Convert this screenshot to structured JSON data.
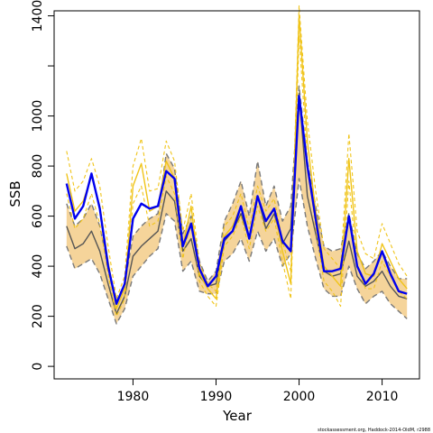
{
  "chart_data": {
    "type": "line",
    "xlabel": "Year",
    "ylabel": "SSB",
    "xlim": [
      1970.5,
      2014.5
    ],
    "ylim": [
      -50,
      1420
    ],
    "x_ticks": [
      1980,
      1990,
      2000,
      2010
    ],
    "y_ticks": [
      0,
      200,
      400,
      600,
      800,
      1000,
      1200,
      1400
    ],
    "y_tick_labels": [
      "0",
      "200",
      "400",
      "600",
      "800",
      "1000",
      "",
      "1400"
    ],
    "grid": false,
    "legend": "none",
    "x": [
      1972,
      1973,
      1974,
      1975,
      1976,
      1977,
      1978,
      1979,
      1980,
      1981,
      1982,
      1983,
      1984,
      1985,
      1986,
      1987,
      1988,
      1989,
      1990,
      1991,
      1992,
      1993,
      1994,
      1995,
      1996,
      1997,
      1998,
      1999,
      2000,
      2001,
      2002,
      2003,
      2004,
      2005,
      2006,
      2007,
      2008,
      2009,
      2010,
      2011,
      2012,
      2013
    ],
    "series": [
      {
        "role": "band",
        "color": "#f5d49a",
        "upper": [
          650,
          560,
          590,
          650,
          560,
          400,
          260,
          330,
          520,
          560,
          590,
          610,
          850,
          790,
          530,
          600,
          420,
          340,
          380,
          580,
          650,
          740,
          600,
          820,
          640,
          720,
          580,
          640,
          1120,
          820,
          640,
          480,
          460,
          470,
          610,
          450,
          390,
          420,
          460,
          400,
          350,
          350
        ],
        "lower": [
          480,
          390,
          410,
          430,
          370,
          270,
          170,
          230,
          360,
          400,
          440,
          470,
          610,
          580,
          380,
          420,
          300,
          290,
          290,
          420,
          450,
          510,
          420,
          540,
          460,
          510,
          400,
          450,
          750,
          560,
          430,
          310,
          280,
          280,
          400,
          310,
          250,
          280,
          300,
          250,
          220,
          190
        ]
      },
      {
        "role": "estimate",
        "color": "#555555",
        "values": [
          560,
          470,
          490,
          540,
          460,
          330,
          210,
          280,
          440,
          480,
          510,
          540,
          700,
          660,
          460,
          510,
          360,
          320,
          330,
          500,
          540,
          610,
          510,
          680,
          550,
          610,
          490,
          550,
          1090,
          680,
          530,
          380,
          360,
          370,
          500,
          360,
          320,
          340,
          380,
          320,
          280,
          270
        ]
      },
      {
        "role": "band-edge",
        "color": "#7a7a7a",
        "dashed": true,
        "values": [
          650,
          560,
          590,
          650,
          560,
          400,
          260,
          330,
          520,
          560,
          590,
          610,
          850,
          790,
          530,
          600,
          420,
          340,
          380,
          580,
          650,
          740,
          600,
          820,
          640,
          720,
          580,
          640,
          1120,
          820,
          640,
          480,
          460,
          470,
          610,
          450,
          390,
          420,
          460,
          400,
          350,
          350
        ]
      },
      {
        "role": "band-edge",
        "color": "#7a7a7a",
        "dashed": true,
        "values": [
          480,
          390,
          410,
          430,
          370,
          270,
          170,
          230,
          360,
          400,
          440,
          470,
          610,
          580,
          380,
          420,
          300,
          290,
          290,
          420,
          450,
          510,
          420,
          540,
          460,
          510,
          400,
          450,
          750,
          560,
          430,
          310,
          280,
          280,
          400,
          310,
          250,
          280,
          300,
          250,
          220,
          190
        ]
      },
      {
        "role": "retrospective",
        "color": "#f0c419",
        "values": [
          770,
          620,
          660,
          760,
          640,
          420,
          230,
          310,
          720,
          810,
          620,
          640,
          820,
          750,
          480,
          640,
          370,
          310,
          270,
          520,
          560,
          640,
          510,
          680,
          580,
          630,
          460,
          330,
          1400,
          900,
          620,
          400,
          360,
          320,
          830,
          460,
          370,
          360,
          490,
          420,
          350,
          310
        ]
      },
      {
        "role": "retrospective-upper",
        "color": "#f0c419",
        "dashed": true,
        "values": [
          860,
          700,
          740,
          830,
          720,
          480,
          270,
          360,
          800,
          910,
          700,
          710,
          900,
          820,
          540,
          690,
          410,
          330,
          300,
          560,
          600,
          690,
          550,
          720,
          620,
          670,
          500,
          380,
          1440,
          980,
          700,
          470,
          430,
          390,
          930,
          540,
          450,
          430,
          570,
          490,
          410,
          360
        ]
      },
      {
        "role": "retrospective-lower",
        "color": "#f0c419",
        "dashed": true,
        "values": [
          690,
          550,
          590,
          690,
          570,
          370,
          200,
          270,
          650,
          720,
          560,
          580,
          760,
          690,
          430,
          590,
          340,
          280,
          240,
          480,
          520,
          600,
          470,
          640,
          540,
          590,
          420,
          270,
          1320,
          820,
          550,
          340,
          300,
          240,
          740,
          400,
          310,
          310,
          420,
          360,
          300,
          270
        ]
      },
      {
        "role": "assessment",
        "color": "#0000ee",
        "values": [
          730,
          590,
          640,
          770,
          630,
          400,
          250,
          330,
          590,
          650,
          630,
          640,
          780,
          750,
          480,
          570,
          390,
          320,
          360,
          510,
          540,
          640,
          510,
          680,
          580,
          630,
          500,
          460,
          1080,
          800,
          590,
          380,
          380,
          390,
          600,
          400,
          330,
          370,
          460,
          370,
          300,
          290
        ]
      }
    ]
  },
  "footer": {
    "credit": "stockassessment.org, Haddock-2014-OldM, r2988"
  }
}
